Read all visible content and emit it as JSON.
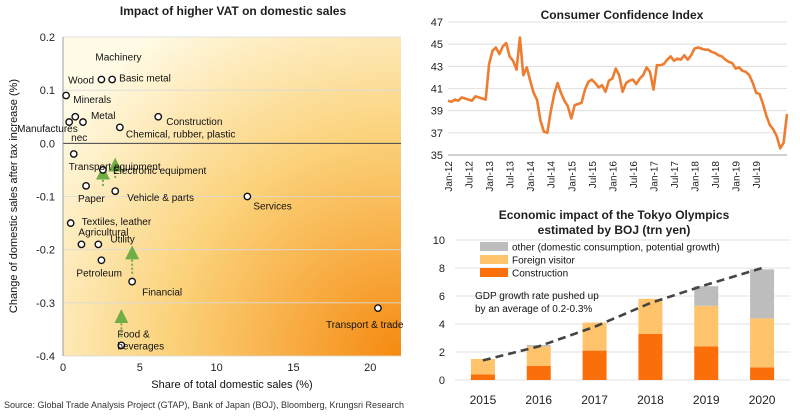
{
  "source": "Source: Global Trade Analysis Project (GTAP), Bank of Japan (BOJ), Bloomberg, Krungsri Research",
  "chart_data": [
    {
      "type": "scatter",
      "title": "Impact of higher VAT on domestic sales",
      "xlabel": "Share of total domestic sales (%)",
      "ylabel": "Change of domestic sales after tax increase (%)",
      "xlim": [
        0,
        22
      ],
      "ylim": [
        -0.4,
        0.2
      ],
      "xticks": [
        "0",
        "5",
        "10",
        "15",
        "20"
      ],
      "yticks": [
        "0.2",
        "0.1",
        "0.0",
        "-0.1",
        "-0.2",
        "-0.3",
        "-0.4"
      ],
      "background_gradient": [
        "#fffbe6",
        "#fbd27a",
        "#f58a10"
      ],
      "points": [
        {
          "label": "Wood",
          "x": 0.2,
          "y": 0.09
        },
        {
          "label": "Machinery",
          "x": 2.5,
          "y": 0.12
        },
        {
          "label": "Basic metal",
          "x": 3.2,
          "y": 0.12
        },
        {
          "label": "Minerals",
          "x": 0.8,
          "y": 0.05
        },
        {
          "label": "Metal",
          "x": 1.3,
          "y": 0.04
        },
        {
          "label": "Manufactures nec",
          "x": 0.4,
          "y": 0.04
        },
        {
          "label": "Construction",
          "x": 6.2,
          "y": 0.05
        },
        {
          "label": "Chemical, rubber, plastic",
          "x": 3.7,
          "y": 0.03
        },
        {
          "label": "Transport equipment",
          "x": 0.7,
          "y": -0.02
        },
        {
          "label": "Electronic equipment",
          "x": 2.6,
          "y": -0.05
        },
        {
          "label": "Paper",
          "x": 1.5,
          "y": -0.08
        },
        {
          "label": "Vehicle & parts",
          "x": 3.4,
          "y": -0.09
        },
        {
          "label": "Services",
          "x": 12.0,
          "y": -0.1
        },
        {
          "label": "Textiles, leather",
          "x": 0.5,
          "y": -0.15
        },
        {
          "label": "Agricultural",
          "x": 1.2,
          "y": -0.19
        },
        {
          "label": "Utility",
          "x": 2.3,
          "y": -0.19
        },
        {
          "label": "Petroleum",
          "x": 2.5,
          "y": -0.22
        },
        {
          "label": "Financial",
          "x": 4.5,
          "y": -0.26
        },
        {
          "label": "Food & beverages",
          "x": 3.8,
          "y": -0.38
        },
        {
          "label": "Transport & trade",
          "x": 20.5,
          "y": -0.31
        }
      ],
      "arrows": [
        {
          "x": 2.6,
          "from_y": -0.08,
          "to_y": -0.055,
          "color": "#70ad47"
        },
        {
          "x": 3.4,
          "from_y": -0.065,
          "to_y": -0.04,
          "color": "#70ad47"
        },
        {
          "x": 4.5,
          "from_y": -0.245,
          "to_y": -0.205,
          "color": "#70ad47"
        },
        {
          "x": 3.8,
          "from_y": -0.365,
          "to_y": -0.325,
          "color": "#70ad47"
        }
      ]
    },
    {
      "type": "line",
      "title": "Consumer Confidence Index",
      "ylim": [
        35,
        47
      ],
      "yticks": [
        "47",
        "45",
        "43",
        "41",
        "39",
        "37",
        "35"
      ],
      "xticks": [
        "Jan-12",
        "Jul-12",
        "Jan-13",
        "Jul-13",
        "Jan-14",
        "Jul-14",
        "Jan-15",
        "Jul-15",
        "Jan-16",
        "Jul-16",
        "Jan-17",
        "Jul-17",
        "Jan-18",
        "Jul-18",
        "Jan-19",
        "Jul-19"
      ],
      "line_color": "#ed7d31",
      "x_start": "2012-01",
      "x_freq": "monthly",
      "values": [
        39.9,
        39.8,
        40.0,
        39.9,
        40.2,
        40.1,
        40.0,
        39.9,
        40.3,
        40.2,
        40.1,
        40.0,
        43.2,
        44.4,
        44.7,
        44.1,
        44.8,
        45.1,
        43.9,
        43.5,
        42.7,
        45.6,
        42.2,
        42.9,
        41.7,
        40.6,
        40.0,
        38.1,
        37.1,
        37.0,
        38.9,
        40.5,
        41.5,
        40.6,
        39.9,
        39.4,
        38.3,
        39.5,
        39.6,
        39.7,
        40.9,
        41.6,
        41.8,
        41.5,
        41.1,
        41.3,
        40.7,
        41.7,
        41.9,
        42.8,
        42.2,
        40.7,
        41.5,
        41.7,
        41.8,
        41.4,
        41.9,
        42.2,
        42.9,
        42.5,
        40.9,
        43.1,
        43.1,
        43.2,
        43.6,
        43.9,
        43.5,
        43.7,
        43.6,
        44.0,
        43.6,
        44.0,
        44.6,
        44.7,
        44.6,
        44.5,
        44.5,
        44.3,
        44.2,
        44.0,
        43.9,
        43.6,
        43.4,
        43.3,
        42.8,
        42.9,
        42.6,
        42.5,
        42.2,
        41.5,
        40.6,
        40.5,
        39.6,
        38.5,
        37.7,
        37.3,
        36.7,
        35.6,
        36.1,
        38.7
      ]
    },
    {
      "type": "bar",
      "stacked": true,
      "title": "Economic impact of the Tokyo Olympics",
      "subtitle": "estimated by BOJ (trn yen)",
      "categories": [
        "2015",
        "2016",
        "2017",
        "2018",
        "2019",
        "2020"
      ],
      "ylim": [
        0,
        10
      ],
      "yticks": [
        "10",
        "8",
        "6",
        "4",
        "2",
        "0"
      ],
      "series": [
        {
          "name": "Construction",
          "color": "#fa6f0a",
          "values": [
            0.4,
            1.0,
            2.1,
            3.3,
            2.4,
            0.9
          ]
        },
        {
          "name": "Foreign visitor",
          "color": "#ffc36b",
          "values": [
            1.1,
            1.4,
            2.0,
            2.5,
            2.9,
            3.5
          ]
        },
        {
          "name": "other (domestic consumption, potential growth)",
          "color": "#bdbdbd",
          "values": [
            0.0,
            0.1,
            0.0,
            0.0,
            1.4,
            3.5
          ]
        }
      ],
      "trend_values": [
        1.4,
        2.4,
        3.8,
        5.5,
        6.8,
        8.0
      ],
      "annotation": [
        "GDP growth rate pushed up",
        "by an average of 0.2-0.3%"
      ]
    }
  ]
}
